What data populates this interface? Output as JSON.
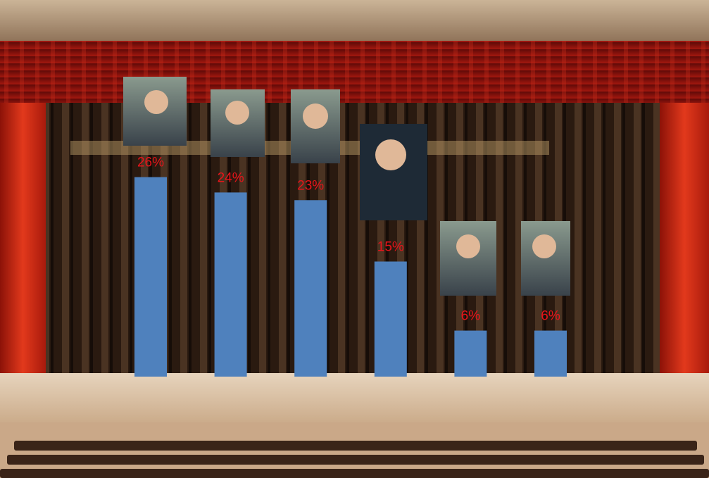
{
  "chart_data": {
    "type": "bar",
    "categories": [
      null,
      null,
      null,
      null,
      null,
      null
    ],
    "values": [
      26,
      24,
      23,
      15,
      6,
      6
    ],
    "value_labels": [
      "26%",
      "24%",
      "23%",
      "15%",
      "6%",
      "6%"
    ],
    "color": "#4f81bd",
    "label_color": "#e8141a"
  }
}
